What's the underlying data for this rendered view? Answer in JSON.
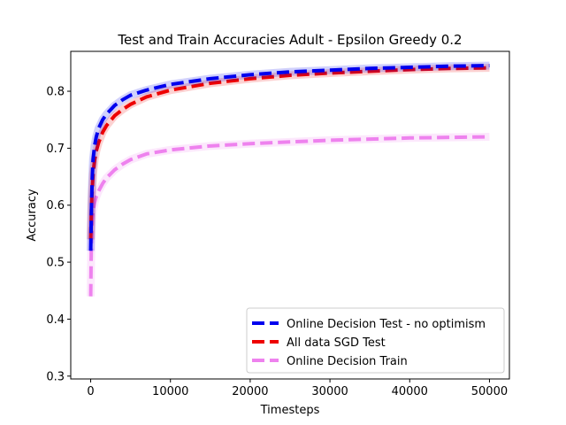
{
  "chart_data": {
    "type": "line",
    "title": "Test and Train Accuracies Adult - Epsilon Greedy 0.2",
    "xlabel": "Timesteps",
    "ylabel": "Accuracy",
    "xlim": [
      -2500,
      52500
    ],
    "ylim": [
      0.295,
      0.87
    ],
    "xticks": [
      0,
      10000,
      20000,
      30000,
      40000,
      50000
    ],
    "xtick_labels": [
      "0",
      "10000",
      "20000",
      "30000",
      "40000",
      "50000"
    ],
    "yticks": [
      0.3,
      0.4,
      0.5,
      0.6,
      0.7,
      0.8
    ],
    "ytick_labels": [
      "0.3",
      "0.4",
      "0.5",
      "0.6",
      "0.7",
      "0.8"
    ],
    "grid": false,
    "legend_position": "lower-right",
    "series": [
      {
        "name": "Online Decision Test - no optimism",
        "color": "#0000ee",
        "style": "dashed",
        "x": [
          0,
          50,
          100,
          200,
          300,
          500,
          700,
          1000,
          1500,
          2000,
          3000,
          4000,
          5000,
          7000,
          10000,
          15000,
          20000,
          25000,
          30000,
          35000,
          40000,
          45000,
          50000
        ],
        "y": [
          0.52,
          0.56,
          0.6,
          0.65,
          0.68,
          0.705,
          0.72,
          0.735,
          0.75,
          0.76,
          0.775,
          0.785,
          0.793,
          0.802,
          0.812,
          0.822,
          0.829,
          0.834,
          0.837,
          0.84,
          0.842,
          0.844,
          0.845
        ]
      },
      {
        "name": "All data SGD Test",
        "color": "#ee0000",
        "style": "dashed",
        "x": [
          0,
          50,
          100,
          200,
          300,
          500,
          700,
          1000,
          1500,
          2000,
          3000,
          4000,
          5000,
          7000,
          10000,
          15000,
          20000,
          25000,
          30000,
          35000,
          40000,
          45000,
          50000
        ],
        "y": [
          0.54,
          0.57,
          0.6,
          0.63,
          0.655,
          0.68,
          0.695,
          0.71,
          0.728,
          0.74,
          0.757,
          0.768,
          0.777,
          0.79,
          0.802,
          0.814,
          0.822,
          0.828,
          0.832,
          0.835,
          0.838,
          0.84,
          0.841
        ]
      },
      {
        "name": "Online Decision Train",
        "color": "#ee82ee",
        "style": "dashed",
        "x": [
          0,
          50,
          100,
          200,
          300,
          500,
          700,
          1000,
          1500,
          2000,
          3000,
          4000,
          5000,
          7000,
          10000,
          15000,
          20000,
          25000,
          30000,
          35000,
          40000,
          45000,
          50000
        ],
        "y": [
          0.44,
          0.5,
          0.54,
          0.575,
          0.59,
          0.605,
          0.615,
          0.625,
          0.638,
          0.648,
          0.662,
          0.672,
          0.68,
          0.69,
          0.697,
          0.704,
          0.708,
          0.711,
          0.714,
          0.716,
          0.718,
          0.719,
          0.72
        ]
      }
    ]
  }
}
